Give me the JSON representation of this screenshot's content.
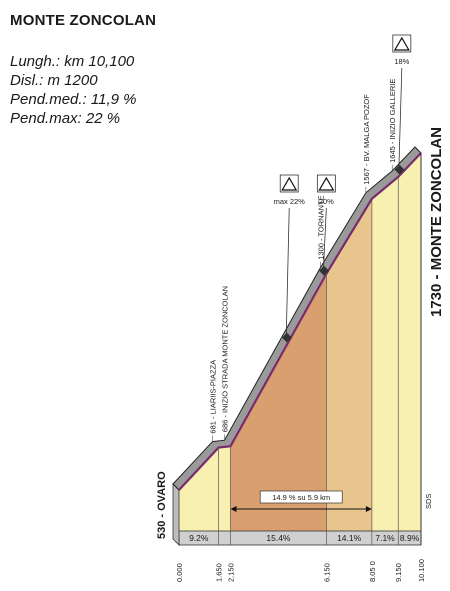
{
  "header": {
    "title": "MONTE ZONCOLAN",
    "length": "Lungh.: km 10,100",
    "climb": "Disl.: m 1200",
    "avg_grade": "Pend.med.: 11,9 %",
    "max_grade": "Pend.max:  22 %"
  },
  "icons": {
    "grade_sign_icon": "warning-triangle"
  },
  "colors": {
    "road": "#9a9a9a",
    "road_outline": "#222222",
    "gradient_line": "#7a2b6e",
    "fill_light": "#f7f0b0",
    "fill_mid": "#e8c58c",
    "fill_dark": "#d99f6e",
    "base_grey": "#d0d0d0"
  },
  "chart_data": {
    "type": "area",
    "title": "MONTE ZONCOLAN",
    "xlabel": "",
    "ylabel": "",
    "xlim": [
      0,
      10.1
    ],
    "ylim": [
      500,
      1780
    ],
    "x_tick_labels": [
      "0.000",
      "1.650",
      "2.150",
      "6.150",
      "8.05 0",
      "9.150",
      "10.100"
    ],
    "x_ticks": [
      0,
      1.65,
      2.15,
      6.15,
      8.05,
      9.15,
      10.1
    ],
    "profile": [
      {
        "x": 0,
        "y": 530
      },
      {
        "x": 1.65,
        "y": 681
      },
      {
        "x": 2.15,
        "y": 686
      },
      {
        "x": 6.15,
        "y": 1300
      },
      {
        "x": 8.05,
        "y": 1567
      },
      {
        "x": 9.15,
        "y": 1645
      },
      {
        "x": 10.1,
        "y": 1730
      }
    ],
    "segment_grades": [
      {
        "from": 0,
        "to": 1.65,
        "label": "9.2%"
      },
      {
        "from": 2.15,
        "to": 6.15,
        "label": "15.4%"
      },
      {
        "from": 6.15,
        "to": 8.05,
        "label": "14.1%"
      },
      {
        "from": 8.05,
        "to": 9.15,
        "label": "7.1%"
      },
      {
        "from": 9.15,
        "to": 10.1,
        "label": "8.9%"
      }
    ],
    "waypoints": [
      {
        "x": 1.65,
        "label": "681 - LIARIIS-PIAZZA"
      },
      {
        "x": 2.15,
        "label": "686 - INIZIO STRADA MONTE ZONCOLAN"
      },
      {
        "x": 6.15,
        "label": "1300 - TORNANTE"
      },
      {
        "x": 8.05,
        "label": "1567 - BV. MALGA POZOF"
      },
      {
        "x": 9.15,
        "label": "1645 - INIZIO GALLERIE"
      }
    ],
    "start_label": "530 - OVARO",
    "summit_label": "1730 - MONTE ZONCOLAN",
    "signs": [
      {
        "x": 4.6,
        "label": "max 22%"
      },
      {
        "x": 6.15,
        "label": "20%"
      },
      {
        "x": 9.3,
        "label": "18%"
      }
    ],
    "annotation": {
      "from": 2.15,
      "to": 8.05,
      "label": "14.9 % su 5.9 km"
    },
    "watermark": "SDS"
  }
}
